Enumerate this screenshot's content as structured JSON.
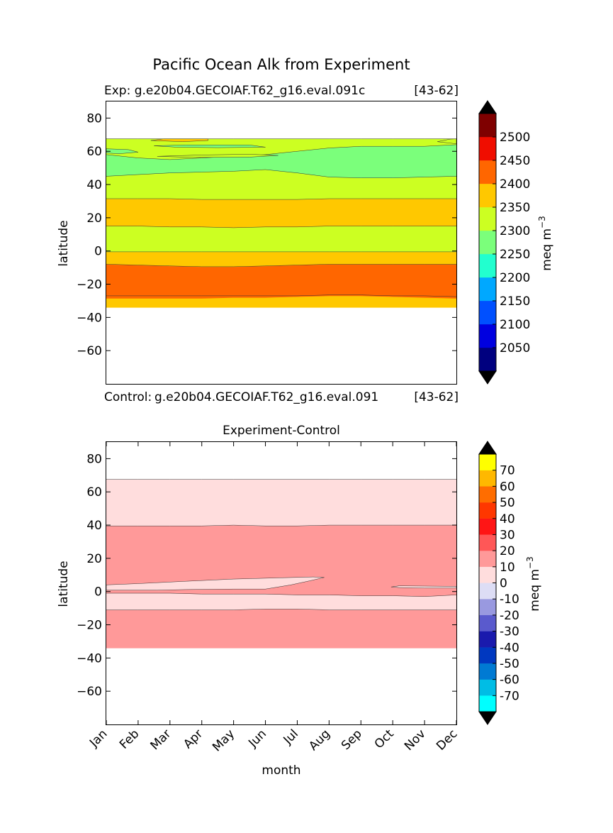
{
  "figure": {
    "title": "Pacific Ocean Alk from Experiment"
  },
  "chart_data": [
    {
      "type": "heatmap",
      "panel": "top",
      "title_left": "Exp:    g.e20b04.GECOIAF.T62_g16.eval.091c",
      "title_right": "[43-62]",
      "x_label": "",
      "y_label": "latitude",
      "x_range": [
        0,
        11
      ],
      "y_range": [
        -80,
        90
      ],
      "y_ticks": [
        80,
        60,
        40,
        20,
        0,
        -20,
        -40,
        -60
      ],
      "y_tick_labels": [
        "80",
        "60",
        "40",
        "20",
        "0",
        "−20",
        "−40",
        "−60"
      ],
      "colorbar": {
        "label": "meq m",
        "label_sup": "−3",
        "levels": [
          2000,
          2050,
          2100,
          2150,
          2200,
          2250,
          2300,
          2350,
          2400,
          2450,
          2500,
          2550
        ],
        "colors": [
          "#00007f",
          "#0000e0",
          "#0050ff",
          "#00a8ff",
          "#22ffcf",
          "#7bff7b",
          "#ccff22",
          "#ffc800",
          "#ff6600",
          "#f00d00",
          "#7f0000"
        ],
        "tick_labels": [
          "2050",
          "2100",
          "2150",
          "2200",
          "2250",
          "2300",
          "2350",
          "2400",
          "2450",
          "2500"
        ],
        "tick_values": [
          2050,
          2100,
          2150,
          2200,
          2250,
          2300,
          2350,
          2400,
          2450,
          2500
        ],
        "extend": "both",
        "under_color": "#000000",
        "over_color": "#000000"
      },
      "bands": [
        {
          "color": "#ffc800",
          "top": [
            -27,
            -27,
            -27,
            -27,
            -27,
            -27,
            -27,
            -26.5,
            -26.5,
            -27,
            -27,
            -27.5
          ],
          "bottom": [
            -34,
            -34,
            -34,
            -34,
            -34,
            -34,
            -34,
            -34,
            -34,
            -34,
            -34,
            -34
          ]
        },
        {
          "color": "#ff6600",
          "top": [
            -8,
            -8.5,
            -9,
            -9.5,
            -9.5,
            -9,
            -8.5,
            -8,
            -8,
            -8,
            -8,
            -8
          ],
          "bottom": [
            -28.5,
            -28.5,
            -28.5,
            -28.5,
            -28,
            -28,
            -27.5,
            -27,
            -27,
            -27.5,
            -28,
            -28.5
          ]
        },
        {
          "color": "#ffc800",
          "top": [
            -0.5,
            -0.5,
            -0.5,
            -0.5,
            -0.5,
            -0.5,
            -0.5,
            -0.5,
            -0.5,
            -0.5,
            -0.5,
            -0.5
          ],
          "bottom": [
            -8,
            -8.5,
            -9,
            -9.5,
            -9.5,
            -9,
            -8.5,
            -8,
            -8,
            -8,
            -8,
            -8
          ]
        },
        {
          "color": "#ccff22",
          "top": [
            15,
            15,
            14.5,
            14.5,
            14,
            14.5,
            14.5,
            15,
            15,
            15,
            15,
            15
          ],
          "bottom": [
            -0.5,
            -0.5,
            -0.5,
            -0.5,
            -0.5,
            -0.5,
            -0.5,
            -0.5,
            -0.5,
            -0.5,
            -0.5,
            -0.5
          ]
        },
        {
          "color": "#ffc800",
          "top": [
            31.5,
            31.5,
            31.5,
            31,
            31,
            31,
            31,
            31.5,
            31.5,
            31.5,
            31.5,
            31.5
          ],
          "bottom": [
            15,
            15,
            14.5,
            14.5,
            14,
            14.5,
            14.5,
            15,
            15,
            15,
            15,
            15
          ]
        },
        {
          "color": "#ccff22",
          "top": [
            45,
            46,
            47,
            47.5,
            48,
            49,
            47,
            44.5,
            44,
            44,
            44.5,
            45
          ],
          "bottom": [
            31.5,
            31.5,
            31.5,
            31,
            31,
            31,
            31,
            31.5,
            31.5,
            31.5,
            31.5,
            31.5
          ]
        },
        {
          "color": "#7bff7b",
          "top": [
            58,
            56,
            55,
            56,
            57,
            58,
            60,
            62,
            63,
            63,
            63,
            64
          ],
          "bottom": [
            45,
            46,
            47,
            47.5,
            48,
            49,
            47,
            44.5,
            44,
            44,
            44.5,
            45
          ]
        },
        {
          "color": "#ccff22",
          "top": [
            67.5,
            67.5,
            67.5,
            67.5,
            67.5,
            67.5,
            67.5,
            67.5,
            67.5,
            67.5,
            67.5,
            67.5
          ],
          "bottom": [
            58,
            56,
            55,
            56,
            57,
            58,
            60,
            62,
            63,
            63,
            63,
            64
          ]
        }
      ],
      "patches": [
        {
          "color": "#7bff7b",
          "points": [
            [
              0.0,
              61.5
            ],
            [
              0.7,
              61
            ],
            [
              1.0,
              59.5
            ],
            [
              0.4,
              58.5
            ],
            [
              0.0,
              59
            ]
          ]
        },
        {
          "color": "#ffc800",
          "points": [
            [
              1.4,
              66.5
            ],
            [
              1.8,
              67.5
            ],
            [
              3.2,
              67.5
            ],
            [
              3.2,
              66.5
            ],
            [
              2.4,
              65.8
            ]
          ]
        },
        {
          "color": "#7bff7b",
          "points": [
            [
              1.5,
              63.3
            ],
            [
              2.5,
              63.8
            ],
            [
              4.5,
              63.8
            ],
            [
              5.0,
              62.5
            ],
            [
              3.5,
              62.2
            ],
            [
              2.2,
              62.5
            ]
          ]
        },
        {
          "color": "#ccff22",
          "points": [
            [
              1.6,
              57
            ],
            [
              3.0,
              57.8
            ],
            [
              4.5,
              58.2
            ],
            [
              5.4,
              57.5
            ],
            [
              4.5,
              56.5
            ],
            [
              2.8,
              56.3
            ]
          ]
        },
        {
          "color": "#ccff22",
          "points": [
            [
              10.4,
              65.8
            ],
            [
              10.8,
              67.3
            ],
            [
              11.0,
              67.5
            ],
            [
              11.0,
              64.5
            ]
          ]
        }
      ]
    },
    {
      "type": "heatmap",
      "panel": "bottom",
      "title_left": "Control:",
      "title_center_text": "g.e20b04.GECOIAF.T62_g16.eval.091",
      "title_right": "[43-62]",
      "subtitle": "Experiment-Control",
      "x_label": "month",
      "y_label": "latitude",
      "x_range": [
        0,
        11
      ],
      "y_range": [
        -80,
        90
      ],
      "categories": [
        "Jan",
        "Feb",
        "Mar",
        "Apr",
        "May",
        "Jun",
        "Jul",
        "Aug",
        "Sep",
        "Oct",
        "Nov",
        "Dec"
      ],
      "y_ticks": [
        80,
        60,
        40,
        20,
        0,
        -20,
        -40,
        -60
      ],
      "y_tick_labels": [
        "80",
        "60",
        "40",
        "20",
        "0",
        "−20",
        "−40",
        "−60"
      ],
      "colorbar": {
        "label": "meq m",
        "label_sup": "−3",
        "levels": [
          -80,
          -70,
          -60,
          -50,
          -40,
          -30,
          -20,
          -10,
          0,
          10,
          20,
          30,
          40,
          50,
          60,
          70,
          80
        ],
        "colors": [
          "#00ffff",
          "#00bde5",
          "#007ad3",
          "#0038c0",
          "#1a1aad",
          "#5a5acd",
          "#9999e0",
          "#ddddf5",
          "#ffdddd",
          "#ff9999",
          "#ff5757",
          "#ff1515",
          "#ff3700",
          "#ff6d00",
          "#ffb800",
          "#ffff00"
        ],
        "tick_labels": [
          "-70",
          "-60",
          "-50",
          "-40",
          "-30",
          "-20",
          "-10",
          "0",
          "10",
          "20",
          "30",
          "40",
          "50",
          "60",
          "70"
        ],
        "tick_values": [
          -70,
          -60,
          -50,
          -40,
          -30,
          -20,
          -10,
          0,
          10,
          20,
          30,
          40,
          50,
          60,
          70
        ],
        "extend": "both",
        "under_color": "#000000",
        "over_color": "#000000"
      },
      "bands": [
        {
          "color": "#ff9999",
          "top": [
            -11,
            -11,
            -11,
            -11,
            -11,
            -10.5,
            -10.5,
            -11,
            -11,
            -11,
            -11,
            -11
          ],
          "bottom": [
            -34,
            -34,
            -34,
            -34,
            -34,
            -34,
            -34,
            -34,
            -34,
            -34,
            -34,
            -34
          ]
        },
        {
          "color": "#ffdddd",
          "top": [
            -1,
            -1,
            -1,
            -1.5,
            -1.5,
            -1.5,
            -2,
            -2,
            -2.5,
            -2.5,
            -3,
            -2
          ],
          "bottom": [
            -11,
            -11,
            -11,
            -11,
            -11,
            -10.5,
            -10.5,
            -11,
            -11,
            -11,
            -11,
            -11
          ]
        },
        {
          "color": "#ff9999",
          "top": [
            39.5,
            39.5,
            39.5,
            39.5,
            40,
            39.5,
            39.5,
            40,
            40,
            40,
            40,
            40
          ],
          "bottom": [
            -1,
            -1,
            -1,
            -1.5,
            -1.5,
            -1.5,
            -2,
            -2,
            -2.5,
            -2.5,
            -3,
            -2
          ]
        },
        {
          "color": "#ffdddd",
          "top": [
            67.5,
            67.5,
            67.5,
            67.5,
            67.5,
            67.5,
            67.5,
            67.5,
            67.5,
            67.5,
            67.5,
            67.5
          ],
          "bottom": [
            39.5,
            39.5,
            39.5,
            39.5,
            40,
            39.5,
            39.5,
            40,
            40,
            40,
            40,
            40
          ]
        }
      ],
      "patches": [
        {
          "color": "#ffdddd",
          "points": [
            [
              0.0,
              4
            ],
            [
              1.0,
              4.8
            ],
            [
              2.5,
              6.2
            ],
            [
              4.0,
              7.5
            ],
            [
              5.5,
              8.3
            ],
            [
              6.5,
              8.8
            ],
            [
              6.85,
              8.5
            ],
            [
              6.4,
              6.5
            ],
            [
              5.8,
              4
            ],
            [
              5.0,
              1.5
            ],
            [
              4.0,
              1.5
            ],
            [
              2.5,
              1.2
            ],
            [
              1.6,
              0.8
            ],
            [
              0.0,
              0.8
            ]
          ]
        },
        {
          "color": "#ffdddd",
          "points": [
            [
              8.95,
              2.8
            ],
            [
              9.2,
              3.4
            ],
            [
              10.0,
              3.3
            ],
            [
              11.0,
              3.1
            ],
            [
              11.0,
              2.1
            ],
            [
              10.0,
              2.1
            ],
            [
              9.2,
              2.4
            ]
          ]
        }
      ]
    }
  ]
}
